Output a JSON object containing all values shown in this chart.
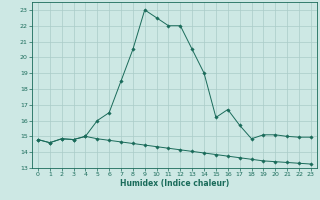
{
  "title": "",
  "xlabel": "Humidex (Indice chaleur)",
  "ylabel": "",
  "background_color": "#cde8e4",
  "grid_color": "#aaccc8",
  "line_color": "#1a6b5a",
  "xlim": [
    -0.5,
    23.5
  ],
  "ylim": [
    13,
    23.5
  ],
  "x_ticks": [
    0,
    1,
    2,
    3,
    4,
    5,
    6,
    7,
    8,
    9,
    10,
    11,
    12,
    13,
    14,
    15,
    16,
    17,
    18,
    19,
    20,
    21,
    22,
    23
  ],
  "y_ticks": [
    13,
    14,
    15,
    16,
    17,
    18,
    19,
    20,
    21,
    22,
    23
  ],
  "line1_x": [
    0,
    1,
    2,
    3,
    4,
    5,
    6,
    7,
    8,
    9,
    10,
    11,
    12,
    13,
    14,
    15,
    16,
    17,
    18,
    19,
    20,
    21,
    22,
    23
  ],
  "line1_y": [
    14.8,
    14.6,
    14.85,
    14.8,
    15.0,
    16.0,
    16.5,
    18.5,
    20.5,
    23.0,
    22.5,
    22.0,
    22.0,
    20.5,
    19.0,
    16.2,
    16.7,
    15.7,
    14.85,
    15.1,
    15.1,
    15.0,
    14.95,
    14.95
  ],
  "line2_x": [
    0,
    1,
    2,
    3,
    4,
    5,
    6,
    7,
    8,
    9,
    10,
    11,
    12,
    13,
    14,
    15,
    16,
    17,
    18,
    19,
    20,
    21,
    22,
    23
  ],
  "line2_y": [
    14.8,
    14.6,
    14.85,
    14.8,
    15.0,
    14.85,
    14.75,
    14.65,
    14.55,
    14.45,
    14.35,
    14.25,
    14.15,
    14.05,
    13.95,
    13.85,
    13.75,
    13.65,
    13.55,
    13.45,
    13.4,
    13.35,
    13.3,
    13.25
  ]
}
